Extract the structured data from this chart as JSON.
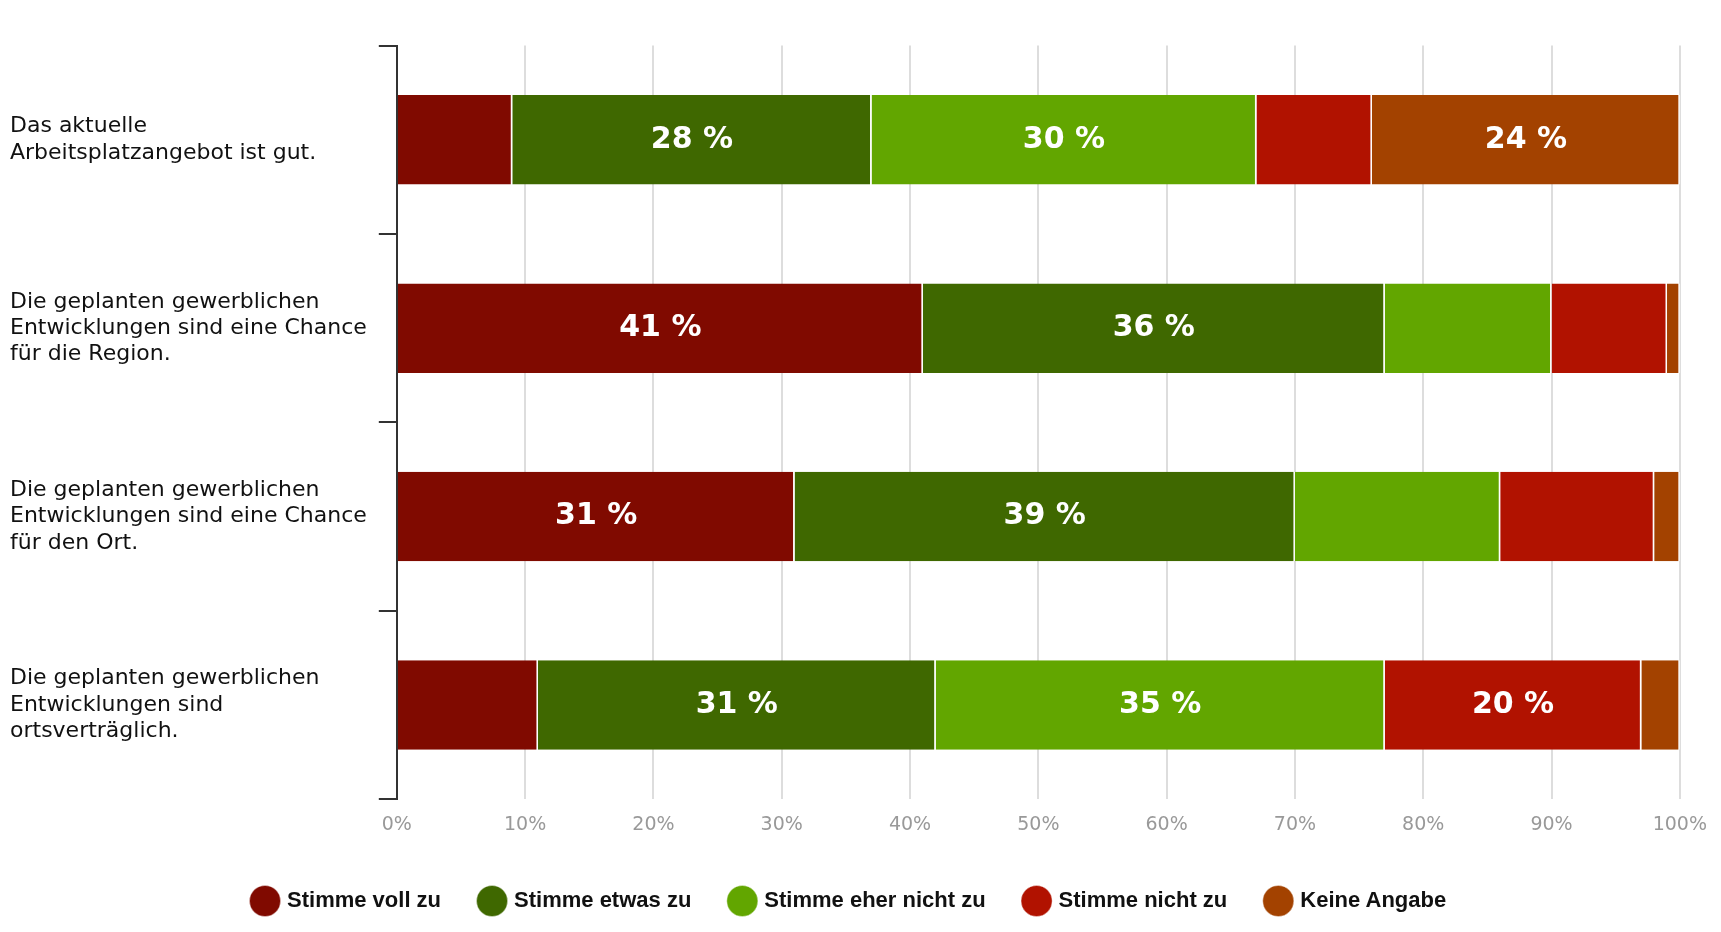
{
  "chart_data": {
    "type": "bar",
    "orientation": "horizontal",
    "stacked": true,
    "categories": [
      "Das aktuelle Arbeitsplatzangebot ist gut.",
      "Die geplanten gewerblichen Entwicklungen sind eine Chance für die Region.",
      "Die geplanten gewerblichen Entwicklungen sind eine Chance für den Ort.",
      "Die geplanten gewerblichen Entwicklungen sind ortsverträglich."
    ],
    "series": [
      {
        "name": "Stimme voll zu",
        "color": "#800a00",
        "values": [
          9,
          41,
          31,
          11
        ],
        "value_labels": [
          null,
          "41 %",
          "31 %",
          null
        ]
      },
      {
        "name": "Stimme etwas zu",
        "color": "#3f6800",
        "values": [
          28,
          36,
          39,
          31
        ],
        "value_labels": [
          "28 %",
          "36 %",
          "39 %",
          "31 %"
        ]
      },
      {
        "name": "Stimme eher nicht zu",
        "color": "#62a600",
        "values": [
          30,
          13,
          16,
          35
        ],
        "value_labels": [
          "30 %",
          null,
          null,
          "35 %"
        ]
      },
      {
        "name": "Stimme nicht zu",
        "color": "#b11200",
        "values": [
          9,
          9,
          12,
          20
        ],
        "value_labels": [
          null,
          null,
          null,
          "20 %"
        ]
      },
      {
        "name": "Keine Angabe",
        "color": "#a34200",
        "values": [
          24,
          1,
          2,
          3
        ],
        "value_labels": [
          "24 %",
          null,
          null,
          null
        ]
      }
    ],
    "xlim": [
      0,
      100
    ],
    "xticks": [
      {
        "value": 0,
        "label": "0%"
      },
      {
        "value": 10,
        "label": "10%"
      },
      {
        "value": 20,
        "label": "20%"
      },
      {
        "value": 30,
        "label": "30%"
      },
      {
        "value": 40,
        "label": "40%"
      },
      {
        "value": 50,
        "label": "50%"
      },
      {
        "value": 60,
        "label": "60%"
      },
      {
        "value": 70,
        "label": "70%"
      },
      {
        "value": 80,
        "label": "80%"
      },
      {
        "value": 90,
        "label": "90%"
      },
      {
        "value": 100,
        "label": "100%"
      }
    ],
    "grid": "x",
    "legend": "bottom"
  }
}
